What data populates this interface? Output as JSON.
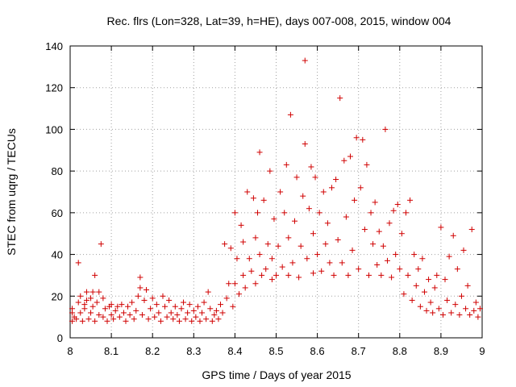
{
  "chart_data": {
    "type": "scatter",
    "title": "Rec. flrs (Lon=328, Lat=39, h=HE), days 007-008, 2015, window 004",
    "xlabel": "GPS time / Days of year 2015",
    "ylabel": "STEC from uqrg / TECUs",
    "xlim": [
      8.0,
      9.0
    ],
    "ylim": [
      0,
      140
    ],
    "xticks": [
      "8",
      "8.1",
      "8.2",
      "8.3",
      "8.4",
      "8.5",
      "8.6",
      "8.7",
      "8.8",
      "8.9",
      "9"
    ],
    "yticks": [
      "0",
      "20",
      "40",
      "60",
      "80",
      "100",
      "120",
      "140"
    ],
    "grid": true,
    "marker": "+",
    "color": "#d00000",
    "series": [
      {
        "name": "STEC",
        "points": [
          [
            8.005,
            8
          ],
          [
            8.005,
            12
          ],
          [
            8.005,
            14
          ],
          [
            8.01,
            10
          ],
          [
            8.015,
            9
          ],
          [
            8.02,
            17
          ],
          [
            8.02,
            36
          ],
          [
            8.025,
            12
          ],
          [
            8.025,
            20
          ],
          [
            8.03,
            8
          ],
          [
            8.035,
            14
          ],
          [
            8.035,
            16
          ],
          [
            8.04,
            22
          ],
          [
            8.04,
            18
          ],
          [
            8.045,
            9
          ],
          [
            8.05,
            19
          ],
          [
            8.05,
            12
          ],
          [
            8.055,
            22
          ],
          [
            8.055,
            15
          ],
          [
            8.06,
            8
          ],
          [
            8.06,
            30
          ],
          [
            8.065,
            17
          ],
          [
            8.07,
            11
          ],
          [
            8.07,
            22
          ],
          [
            8.075,
            45
          ],
          [
            8.08,
            10
          ],
          [
            8.08,
            19
          ],
          [
            8.085,
            14
          ],
          [
            8.09,
            8
          ],
          [
            8.095,
            15
          ],
          [
            8.1,
            11
          ],
          [
            8.1,
            16
          ],
          [
            8.105,
            9
          ],
          [
            8.11,
            13
          ],
          [
            8.115,
            15
          ],
          [
            8.12,
            10
          ],
          [
            8.125,
            16
          ],
          [
            8.13,
            12
          ],
          [
            8.135,
            8
          ],
          [
            8.14,
            15
          ],
          [
            8.145,
            11
          ],
          [
            8.15,
            17
          ],
          [
            8.155,
            9
          ],
          [
            8.16,
            13
          ],
          [
            8.165,
            20
          ],
          [
            8.17,
            29
          ],
          [
            8.17,
            24
          ],
          [
            8.175,
            11
          ],
          [
            8.18,
            18
          ],
          [
            8.185,
            23
          ],
          [
            8.19,
            9
          ],
          [
            8.195,
            14
          ],
          [
            8.2,
            19
          ],
          [
            8.205,
            10
          ],
          [
            8.21,
            16
          ],
          [
            8.215,
            12
          ],
          [
            8.22,
            8
          ],
          [
            8.225,
            20
          ],
          [
            8.23,
            15
          ],
          [
            8.235,
            10
          ],
          [
            8.24,
            18
          ],
          [
            8.245,
            12
          ],
          [
            8.25,
            9
          ],
          [
            8.255,
            15
          ],
          [
            8.26,
            11
          ],
          [
            8.265,
            8
          ],
          [
            8.27,
            14
          ],
          [
            8.275,
            17
          ],
          [
            8.28,
            9
          ],
          [
            8.285,
            12
          ],
          [
            8.29,
            16
          ],
          [
            8.295,
            8
          ],
          [
            8.3,
            13
          ],
          [
            8.305,
            10
          ],
          [
            8.31,
            15
          ],
          [
            8.315,
            8
          ],
          [
            8.32,
            12
          ],
          [
            8.325,
            17
          ],
          [
            8.33,
            9
          ],
          [
            8.335,
            22
          ],
          [
            8.34,
            14
          ],
          [
            8.345,
            8
          ],
          [
            8.35,
            11
          ],
          [
            8.355,
            13
          ],
          [
            8.36,
            9
          ],
          [
            8.365,
            16
          ],
          [
            8.37,
            12
          ],
          [
            8.375,
            45
          ],
          [
            8.38,
            19
          ],
          [
            8.385,
            26
          ],
          [
            8.39,
            43
          ],
          [
            8.395,
            15
          ],
          [
            8.4,
            26
          ],
          [
            8.4,
            60
          ],
          [
            8.405,
            38
          ],
          [
            8.41,
            21
          ],
          [
            8.415,
            54
          ],
          [
            8.42,
            30
          ],
          [
            8.42,
            46
          ],
          [
            8.425,
            24
          ],
          [
            8.43,
            70
          ],
          [
            8.435,
            38
          ],
          [
            8.44,
            32
          ],
          [
            8.445,
            67
          ],
          [
            8.45,
            26
          ],
          [
            8.45,
            48
          ],
          [
            8.455,
            60
          ],
          [
            8.46,
            89
          ],
          [
            8.46,
            40
          ],
          [
            8.465,
            30
          ],
          [
            8.47,
            66
          ],
          [
            8.475,
            33
          ],
          [
            8.48,
            45
          ],
          [
            8.485,
            80
          ],
          [
            8.49,
            28
          ],
          [
            8.49,
            38
          ],
          [
            8.495,
            57
          ],
          [
            8.5,
            30
          ],
          [
            8.505,
            44
          ],
          [
            8.51,
            70
          ],
          [
            8.515,
            34
          ],
          [
            8.52,
            60
          ],
          [
            8.525,
            83
          ],
          [
            8.53,
            30
          ],
          [
            8.53,
            48
          ],
          [
            8.535,
            107
          ],
          [
            8.54,
            36
          ],
          [
            8.545,
            56
          ],
          [
            8.55,
            77
          ],
          [
            8.555,
            29
          ],
          [
            8.56,
            44
          ],
          [
            8.565,
            68
          ],
          [
            8.57,
            133
          ],
          [
            8.57,
            93
          ],
          [
            8.575,
            38
          ],
          [
            8.58,
            62
          ],
          [
            8.585,
            82
          ],
          [
            8.59,
            31
          ],
          [
            8.59,
            50
          ],
          [
            8.595,
            77
          ],
          [
            8.6,
            40
          ],
          [
            8.605,
            60
          ],
          [
            8.61,
            32
          ],
          [
            8.615,
            70
          ],
          [
            8.62,
            45
          ],
          [
            8.625,
            55
          ],
          [
            8.63,
            36
          ],
          [
            8.635,
            72
          ],
          [
            8.64,
            30
          ],
          [
            8.645,
            76
          ],
          [
            8.65,
            47
          ],
          [
            8.655,
            115
          ],
          [
            8.66,
            36
          ],
          [
            8.665,
            85
          ],
          [
            8.67,
            58
          ],
          [
            8.675,
            30
          ],
          [
            8.68,
            87
          ],
          [
            8.685,
            42
          ],
          [
            8.69,
            66
          ],
          [
            8.695,
            96
          ],
          [
            8.7,
            33
          ],
          [
            8.705,
            72
          ],
          [
            8.71,
            95
          ],
          [
            8.715,
            52
          ],
          [
            8.72,
            83
          ],
          [
            8.725,
            30
          ],
          [
            8.73,
            60
          ],
          [
            8.735,
            45
          ],
          [
            8.74,
            65
          ],
          [
            8.745,
            35
          ],
          [
            8.75,
            51
          ],
          [
            8.755,
            30
          ],
          [
            8.76,
            44
          ],
          [
            8.765,
            100
          ],
          [
            8.77,
            37
          ],
          [
            8.775,
            55
          ],
          [
            8.78,
            29
          ],
          [
            8.785,
            61
          ],
          [
            8.79,
            40
          ],
          [
            8.795,
            64
          ],
          [
            8.8,
            33
          ],
          [
            8.805,
            50
          ],
          [
            8.81,
            21
          ],
          [
            8.815,
            60
          ],
          [
            8.82,
            30
          ],
          [
            8.825,
            66
          ],
          [
            8.83,
            18
          ],
          [
            8.835,
            40
          ],
          [
            8.84,
            25
          ],
          [
            8.845,
            33
          ],
          [
            8.85,
            15
          ],
          [
            8.855,
            38
          ],
          [
            8.86,
            22
          ],
          [
            8.865,
            13
          ],
          [
            8.87,
            28
          ],
          [
            8.875,
            17
          ],
          [
            8.88,
            12
          ],
          [
            8.885,
            24
          ],
          [
            8.89,
            30
          ],
          [
            8.895,
            14
          ],
          [
            8.9,
            53
          ],
          [
            8.905,
            11
          ],
          [
            8.91,
            28
          ],
          [
            8.915,
            18
          ],
          [
            8.92,
            39
          ],
          [
            8.925,
            12
          ],
          [
            8.93,
            49
          ],
          [
            8.935,
            16
          ],
          [
            8.94,
            33
          ],
          [
            8.945,
            11
          ],
          [
            8.95,
            20
          ],
          [
            8.955,
            42
          ],
          [
            8.96,
            14
          ],
          [
            8.965,
            25
          ],
          [
            8.97,
            11
          ],
          [
            8.975,
            52
          ],
          [
            8.98,
            13
          ],
          [
            8.985,
            17
          ],
          [
            8.99,
            10
          ],
          [
            8.995,
            14
          ]
        ]
      }
    ]
  }
}
